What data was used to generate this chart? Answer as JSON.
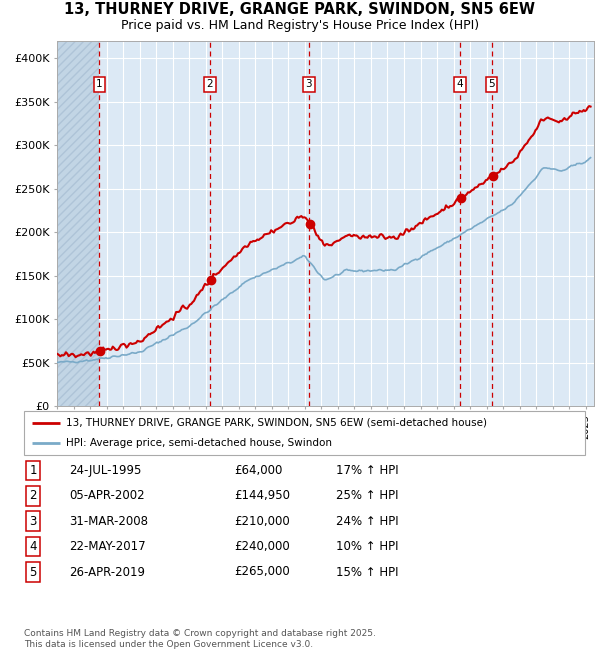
{
  "title_line1": "13, THURNEY DRIVE, GRANGE PARK, SWINDON, SN5 6EW",
  "title_line2": "Price paid vs. HM Land Registry's House Price Index (HPI)",
  "legend_line1": "13, THURNEY DRIVE, GRANGE PARK, SWINDON, SN5 6EW (semi-detached house)",
  "legend_line2": "HPI: Average price, semi-detached house, Swindon",
  "footer": "Contains HM Land Registry data © Crown copyright and database right 2025.\nThis data is licensed under the Open Government Licence v3.0.",
  "sale_rows": [
    [
      "1",
      "24-JUL-1995",
      "£64,000",
      "17% ↑ HPI"
    ],
    [
      "2",
      "05-APR-2002",
      "£144,950",
      "25% ↑ HPI"
    ],
    [
      "3",
      "31-MAR-2008",
      "£210,000",
      "24% ↑ HPI"
    ],
    [
      "4",
      "22-MAY-2017",
      "£240,000",
      "10% ↑ HPI"
    ],
    [
      "5",
      "26-APR-2019",
      "£265,000",
      "15% ↑ HPI"
    ]
  ],
  "sale_dates_yr": [
    1995.558,
    2002.258,
    2008.247,
    2017.388,
    2019.319
  ],
  "sale_prices": [
    64000,
    144950,
    210000,
    240000,
    265000
  ],
  "ylim": [
    0,
    420000
  ],
  "yticks": [
    0,
    50000,
    100000,
    150000,
    200000,
    250000,
    300000,
    350000,
    400000
  ],
  "ytick_labels": [
    "£0",
    "£50K",
    "£100K",
    "£150K",
    "£200K",
    "£250K",
    "£300K",
    "£350K",
    "£400K"
  ],
  "xlim_start": 1993.0,
  "xlim_end": 2025.5,
  "line_color_red": "#cc0000",
  "line_color_blue": "#7aaac8",
  "bg_color": "#dce9f5",
  "hatch_color": "#c2d5e5",
  "grid_color": "#ffffff",
  "vline_color": "#cc0000",
  "marker_color": "#cc0000",
  "sale_label_border": "#cc0000"
}
